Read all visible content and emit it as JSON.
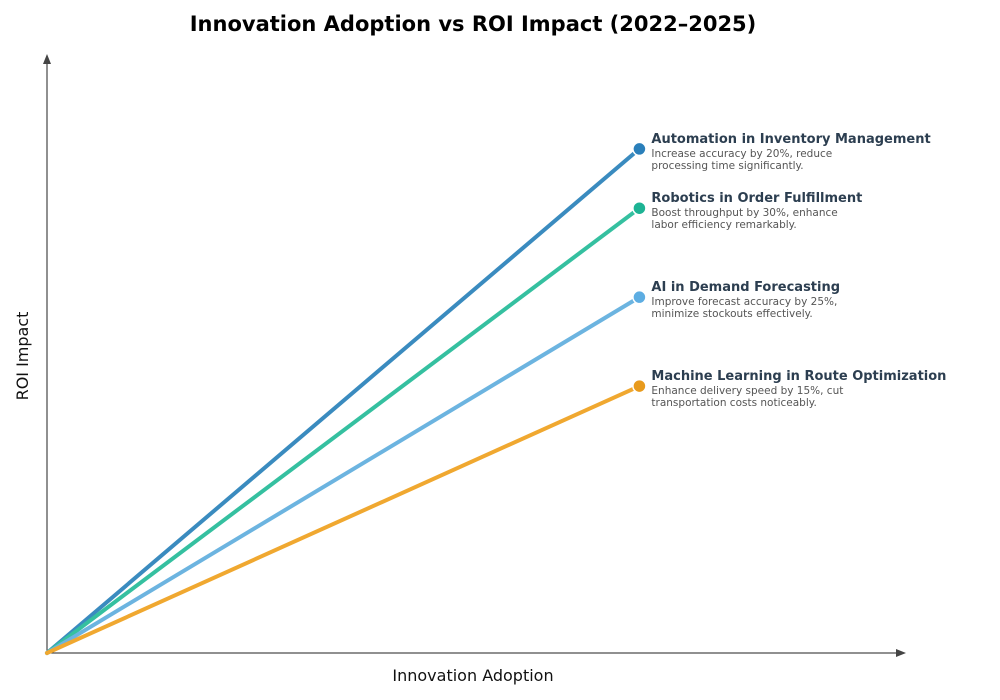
{
  "chart_data": {
    "type": "line",
    "title": "Innovation Adoption vs ROI Impact (2022–2025)",
    "xlabel": "Innovation Adoption",
    "ylabel": "ROI Impact",
    "xlim": [
      0,
      1.45
    ],
    "ylim": [
      0,
      1.01
    ],
    "grid": false,
    "legend": "none",
    "series": [
      {
        "name": "Automation in Inventory Management",
        "desc_lines": [
          "Increase accuracy by 20%, reduce",
          "processing time significantly."
        ],
        "color": "#3a8bbf",
        "marker_color": "#2a7fba",
        "x": [
          0,
          1
        ],
        "y": [
          0,
          0.85
        ]
      },
      {
        "name": "Robotics in Order Fulfillment",
        "desc_lines": [
          "Boost throughput by 30%, enhance",
          "labor efficiency remarkably."
        ],
        "color": "#35c0a0",
        "marker_color": "#1db394",
        "x": [
          0,
          1
        ],
        "y": [
          0,
          0.75
        ]
      },
      {
        "name": "AI in Demand Forecasting",
        "desc_lines": [
          "Improve forecast accuracy by 25%,",
          "minimize stockouts effectively."
        ],
        "color": "#6cb4e0",
        "marker_color": "#5dade2",
        "x": [
          0,
          1
        ],
        "y": [
          0,
          0.6
        ]
      },
      {
        "name": "Machine Learning in Route Optimization",
        "desc_lines": [
          "Enhance delivery speed by 15%, cut",
          "transportation costs noticeably."
        ],
        "color": "#f0a830",
        "marker_color": "#e89a1c",
        "x": [
          0,
          1
        ],
        "y": [
          0,
          0.45
        ]
      }
    ]
  }
}
